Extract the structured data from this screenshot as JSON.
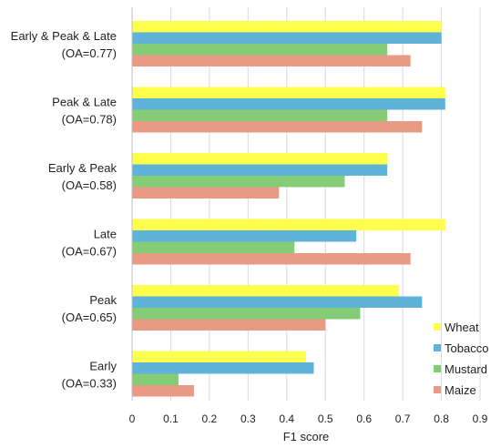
{
  "chart_data": {
    "type": "bar",
    "orientation": "horizontal",
    "categories": [
      [
        "Early & Peak & Late",
        "(OA=0.77)"
      ],
      [
        "Peak & Late",
        "(OA=0.78)"
      ],
      [
        "Early & Peak",
        "(OA=0.58)"
      ],
      [
        "Late",
        "(OA=0.67)"
      ],
      [
        "Peak",
        "(OA=0.65)"
      ],
      [
        "Early",
        "(OA=0.33)"
      ]
    ],
    "series": [
      {
        "name": "Wheat",
        "color": "#ffff4d",
        "values": [
          0.8,
          0.81,
          0.66,
          0.81,
          0.69,
          0.45
        ]
      },
      {
        "name": "Tobacco",
        "color": "#5fb3d8",
        "values": [
          0.8,
          0.81,
          0.66,
          0.58,
          0.75,
          0.47
        ]
      },
      {
        "name": "Mustard",
        "color": "#85cc77",
        "values": [
          0.66,
          0.66,
          0.55,
          0.42,
          0.59,
          0.12
        ]
      },
      {
        "name": "Maize",
        "color": "#e89a84",
        "values": [
          0.72,
          0.75,
          0.38,
          0.72,
          0.5,
          0.16
        ]
      }
    ],
    "xlabel": "F1 score",
    "xlim": [
      0,
      0.9
    ],
    "xticks": [
      "0",
      "0.1",
      "0.2",
      "0.3",
      "0.4",
      "0.5",
      "0.6",
      "0.7",
      "0.8",
      "0.9"
    ],
    "grid": true,
    "legend_position": "bottom-right"
  }
}
